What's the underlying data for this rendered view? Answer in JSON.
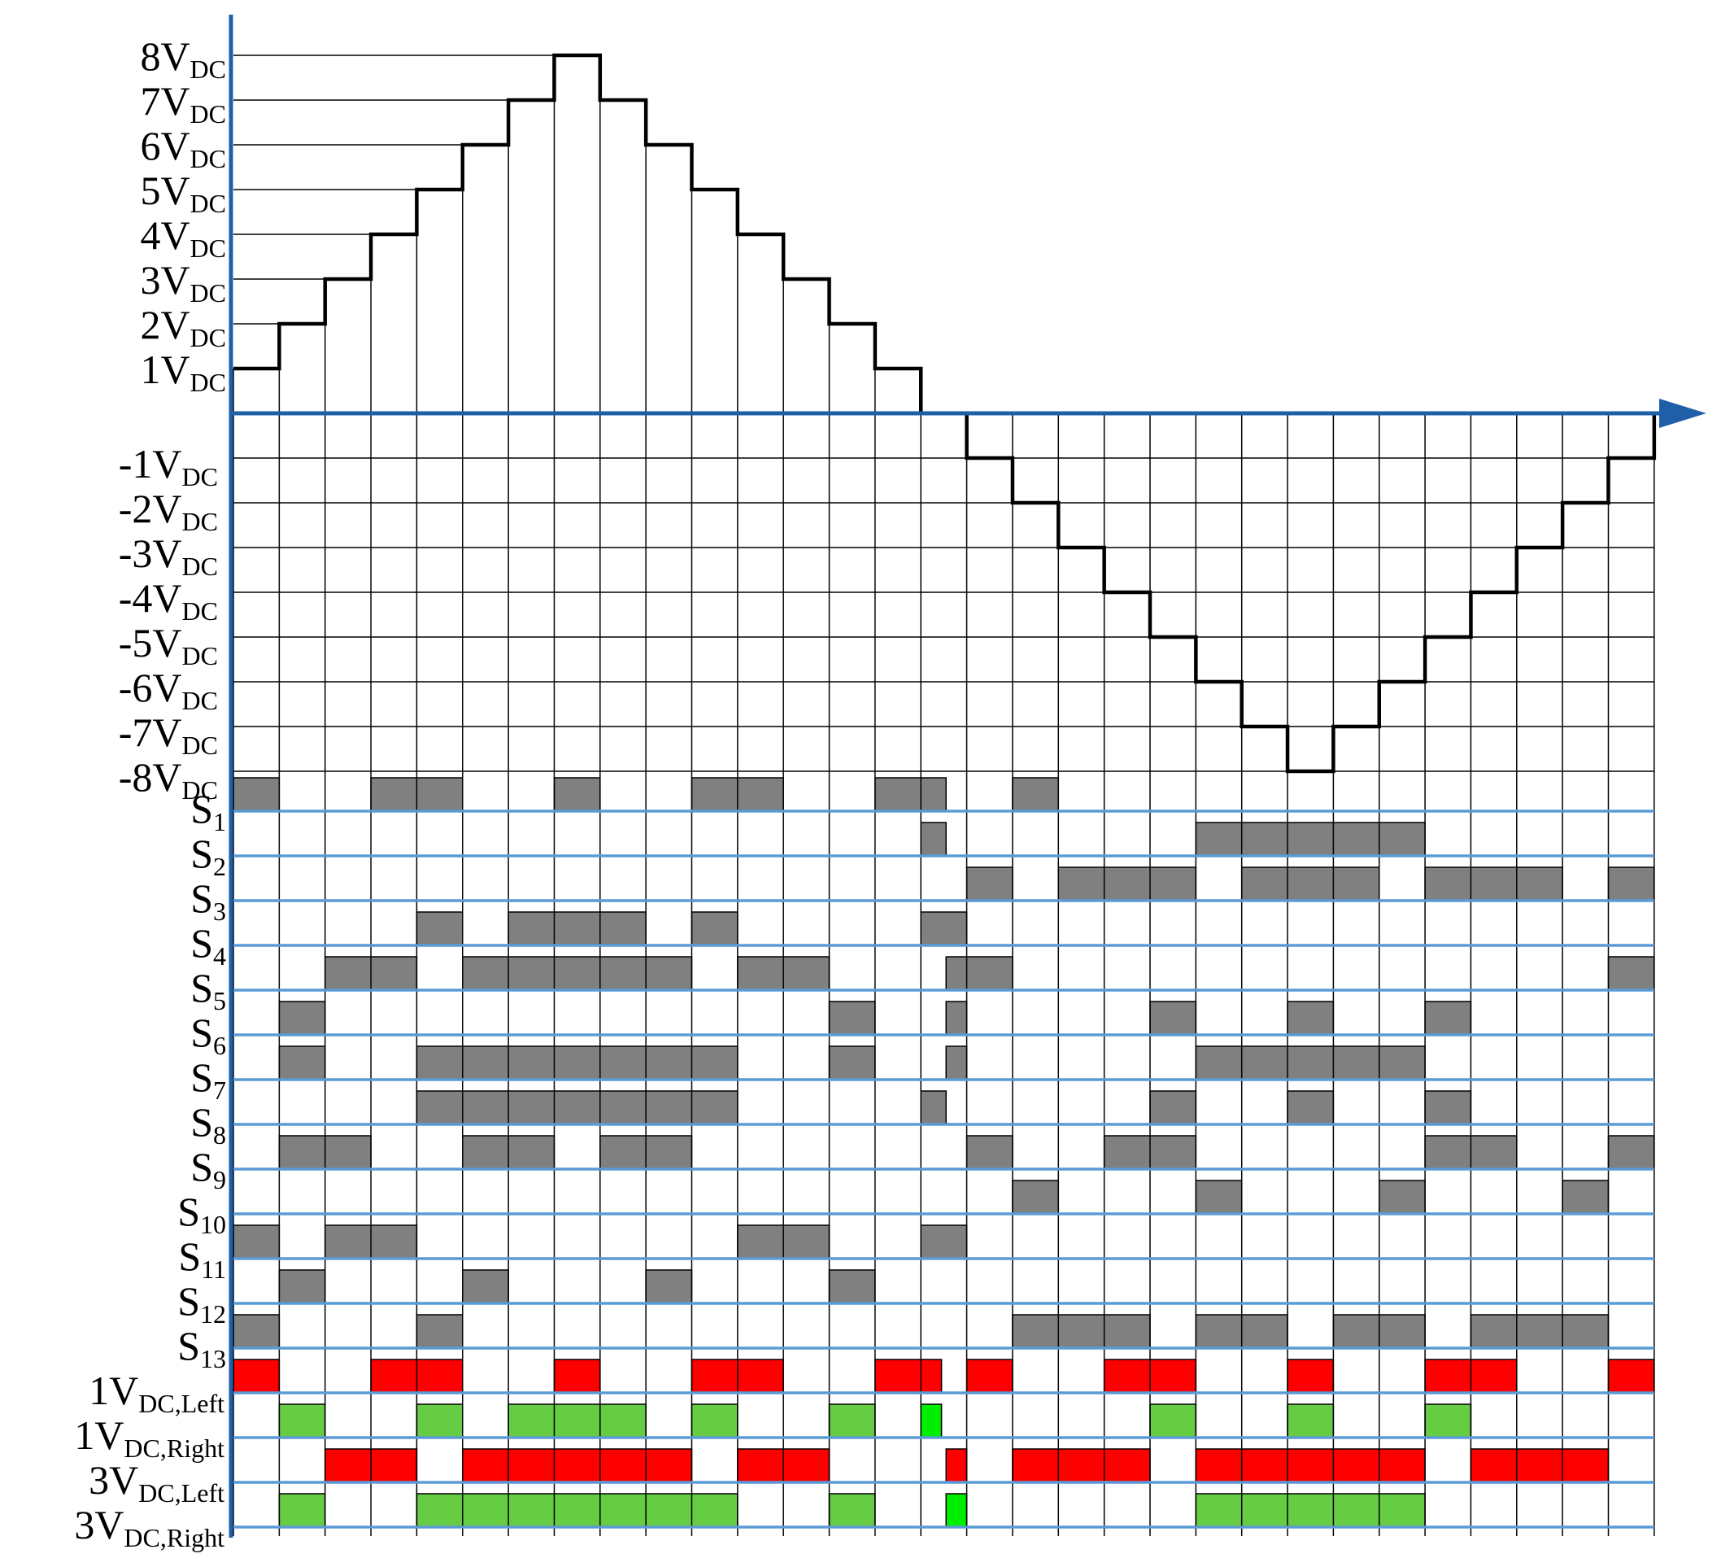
{
  "colors": {
    "axis": "#1f5fa8",
    "signal_line": "#5b9bd5",
    "grid": "#000000",
    "waveform": "#000000",
    "gate_on": "#808080",
    "left_on": "#ff0000",
    "right_on": "#66cc44",
    "right_on_bright": "#00ee00"
  },
  "voltage_axis": {
    "positive_labels": [
      {
        "main": "8V",
        "sub": "DC"
      },
      {
        "main": "7V",
        "sub": "DC"
      },
      {
        "main": "6V",
        "sub": "DC"
      },
      {
        "main": "5V",
        "sub": "DC"
      },
      {
        "main": "4V",
        "sub": "DC"
      },
      {
        "main": "3V",
        "sub": "DC"
      },
      {
        "main": "2V",
        "sub": "DC"
      },
      {
        "main": "1V",
        "sub": "DC"
      }
    ],
    "negative_labels": [
      {
        "main": "-1V",
        "sub": "DC"
      },
      {
        "main": "-2V",
        "sub": "DC"
      },
      {
        "main": "-3V",
        "sub": "DC"
      },
      {
        "main": "-4V",
        "sub": "DC"
      },
      {
        "main": "-5V",
        "sub": "DC"
      },
      {
        "main": "-6V",
        "sub": "DC"
      },
      {
        "main": "-7V",
        "sub": "DC"
      },
      {
        "main": "-8V",
        "sub": "DC"
      }
    ]
  },
  "waveform_levels": [
    1,
    2,
    3,
    4,
    5,
    6,
    7,
    8,
    7,
    6,
    5,
    4,
    3,
    2,
    1,
    0,
    -1,
    -2,
    -3,
    -4,
    -5,
    -6,
    -7,
    -8,
    -7,
    -6,
    -5,
    -4,
    -3,
    -2,
    -1
  ],
  "switch_labels": [
    {
      "main": "S",
      "sub": "1"
    },
    {
      "main": "S",
      "sub": "2"
    },
    {
      "main": "S",
      "sub": "3"
    },
    {
      "main": "S",
      "sub": "4"
    },
    {
      "main": "S",
      "sub": "5"
    },
    {
      "main": "S",
      "sub": "6"
    },
    {
      "main": "S",
      "sub": "7"
    },
    {
      "main": "S",
      "sub": "8"
    },
    {
      "main": "S",
      "sub": "9"
    },
    {
      "main": "S",
      "sub": "10"
    },
    {
      "main": "S",
      "sub": "11"
    },
    {
      "main": "S",
      "sub": "12"
    },
    {
      "main": "S",
      "sub": "13"
    }
  ],
  "source_labels": [
    {
      "main": "1V",
      "sub": "DC,Left"
    },
    {
      "main": "1V",
      "sub": "DC,Right"
    },
    {
      "main": "3V",
      "sub": "DC,Left"
    },
    {
      "main": "3V",
      "sub": "DC,Right"
    }
  ],
  "gate_rows": [
    [
      [
        0,
        1
      ],
      [
        3,
        5
      ],
      [
        7,
        8
      ],
      [
        10,
        12
      ],
      [
        14,
        15.55
      ],
      [
        17,
        18
      ]
    ],
    [
      [
        15,
        15.55
      ],
      [
        21,
        26
      ]
    ],
    [
      [
        16,
        17
      ],
      [
        18,
        21
      ],
      [
        22,
        25
      ],
      [
        26,
        29
      ],
      [
        30,
        31
      ]
    ],
    [
      [
        4,
        5
      ],
      [
        6,
        9
      ],
      [
        10,
        11
      ],
      [
        15,
        16
      ]
    ],
    [
      [
        2,
        4
      ],
      [
        5,
        10
      ],
      [
        11,
        13
      ],
      [
        15.55,
        17
      ],
      [
        30,
        31
      ]
    ],
    [
      [
        1,
        2
      ],
      [
        13,
        14
      ],
      [
        15.55,
        16
      ],
      [
        20,
        21
      ],
      [
        23,
        24
      ],
      [
        26,
        27
      ]
    ],
    [
      [
        1,
        2
      ],
      [
        4,
        11
      ],
      [
        13,
        14
      ],
      [
        15.55,
        16
      ],
      [
        21,
        26
      ]
    ],
    [
      [
        4,
        11
      ],
      [
        15,
        15.55
      ],
      [
        20,
        21
      ],
      [
        23,
        24
      ],
      [
        26,
        27
      ]
    ],
    [
      [
        1,
        3
      ],
      [
        5,
        7
      ],
      [
        8,
        10
      ],
      [
        16,
        17
      ],
      [
        19,
        21
      ],
      [
        26,
        28
      ],
      [
        30,
        31
      ]
    ],
    [
      [
        17,
        18
      ],
      [
        21,
        22
      ],
      [
        25,
        26
      ],
      [
        29,
        30
      ]
    ],
    [
      [
        0,
        1
      ],
      [
        2,
        4
      ],
      [
        11,
        13
      ],
      [
        15,
        16
      ]
    ],
    [
      [
        1,
        2
      ],
      [
        5,
        6
      ],
      [
        9,
        10
      ],
      [
        13,
        14
      ]
    ],
    [
      [
        0,
        1
      ],
      [
        4,
        5
      ],
      [
        17,
        20
      ],
      [
        21,
        23
      ],
      [
        24,
        26
      ],
      [
        27,
        30
      ]
    ]
  ],
  "source_rows": [
    {
      "kind": "left",
      "bars": [
        [
          0,
          1
        ],
        [
          3,
          5
        ],
        [
          7,
          8
        ],
        [
          10,
          12
        ],
        [
          14,
          15
        ],
        [
          15,
          15.45
        ],
        [
          16,
          17
        ],
        [
          19,
          21
        ],
        [
          23,
          24
        ],
        [
          26,
          28
        ],
        [
          30,
          31
        ]
      ]
    },
    {
      "kind": "right",
      "bars": [
        [
          1,
          2
        ],
        [
          4,
          5
        ],
        [
          6,
          9
        ],
        [
          10,
          11
        ],
        [
          13,
          14
        ],
        [
          20,
          21
        ],
        [
          23,
          24
        ],
        [
          26,
          27
        ]
      ],
      "bright": [
        [
          15,
          15.45
        ]
      ]
    },
    {
      "kind": "left",
      "bars": [
        [
          2,
          4
        ],
        [
          5,
          10
        ],
        [
          11,
          13
        ],
        [
          15.55,
          16
        ],
        [
          17,
          20
        ],
        [
          21,
          26
        ],
        [
          27,
          30
        ]
      ]
    },
    {
      "kind": "right",
      "bars": [
        [
          1,
          2
        ],
        [
          4,
          11
        ],
        [
          13,
          14
        ],
        [
          21,
          26
        ]
      ],
      "bright": [
        [
          15.55,
          16
        ]
      ]
    }
  ]
}
